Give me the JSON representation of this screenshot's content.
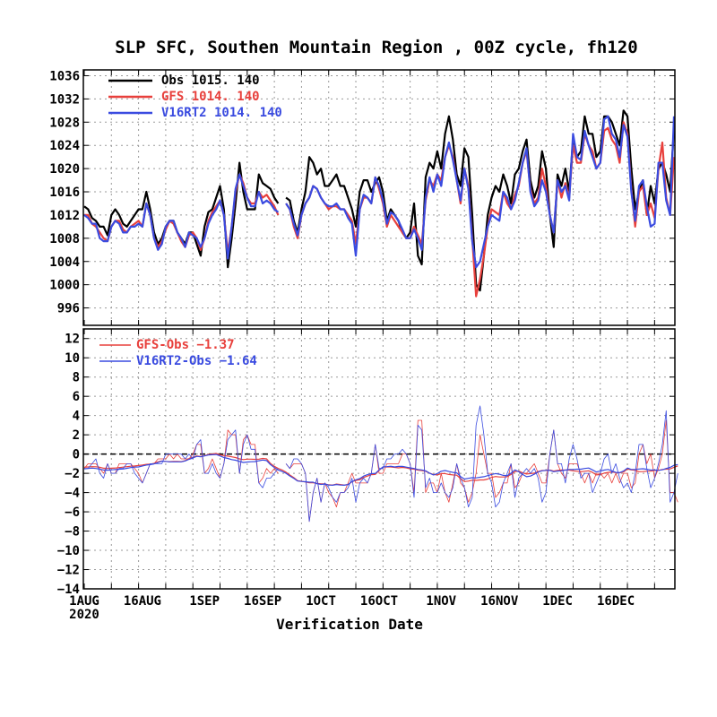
{
  "chart_data": [
    {
      "type": "line",
      "title": "SLP SFC, Southen Mountain Region , 00Z cycle, fh120",
      "xlabel": "Verification Date",
      "ylim": [
        993,
        1037
      ],
      "yticks": [
        "1036",
        "1032",
        "1028",
        "1024",
        "1020",
        "1016",
        "1012",
        "1008",
        "1004",
        "1000",
        "996"
      ],
      "xticks": [
        "1AUG",
        "16AUG",
        "1SEP",
        "16SEP",
        "1OCT",
        "16OCT",
        "1NOV",
        "16NOV",
        "1DEC",
        "16DEC"
      ],
      "xticks_sub": [
        "2020"
      ],
      "x_start": "2020-08-01",
      "x_end": "2020-12-22",
      "grid": true,
      "legend_position": "top-left",
      "series": [
        {
          "name": "Obs",
          "legend_text": "Obs   1015.  140",
          "color": "#000000",
          "values": [
            1013.5,
            1013,
            1011.5,
            1011,
            1010,
            1010,
            1008.5,
            1012,
            1013,
            1012,
            1010.5,
            1010,
            1011,
            1012,
            1013,
            1013,
            1016,
            1013,
            1009,
            1007,
            1008,
            1010,
            1011,
            1011,
            1009,
            1008,
            1007,
            1009,
            1009,
            1007,
            1005,
            1010,
            1012.5,
            1013,
            1015,
            1017,
            1013,
            1003,
            1008,
            1014,
            1021,
            1016,
            1013,
            1013,
            1013,
            1019,
            1017.5,
            1017,
            1016.5,
            1015,
            1014,
            null,
            1015,
            1014.5,
            1011,
            1009,
            1013,
            1016,
            1022,
            1021,
            1019,
            1020,
            1017,
            1017,
            1018,
            1019,
            1017,
            1017,
            1015,
            1013,
            1010,
            1016,
            1018,
            1018,
            1016,
            1017.5,
            1018.5,
            1016,
            1011,
            1013,
            1012,
            1011,
            1009,
            1008,
            1009,
            1014,
            1005,
            1003.5,
            1018.5,
            1021,
            1020,
            1023,
            1020,
            1026,
            1029,
            1025,
            1019,
            1017,
            1023.5,
            1022,
            1012,
            1000,
            999,
            1005,
            1012,
            1015,
            1017,
            1016,
            1019,
            1017,
            1014,
            1019,
            1020,
            1023,
            1025,
            1018,
            1015,
            1017,
            1023,
            1020,
            1012,
            1006.5,
            1019,
            1017,
            1020,
            1016,
            1025,
            1022,
            1023,
            1029,
            1026,
            1026,
            1022,
            1023,
            1029,
            1029,
            1028,
            1026,
            1024,
            1030,
            1029,
            1020,
            1013,
            1016,
            1018,
            1012,
            1017,
            1014,
            1020,
            1021,
            1019,
            1016,
            1027
          ]
        },
        {
          "name": "GFS",
          "legend_text": "GFS  1014.  140",
          "color": "#e8403c",
          "values": [
            1012,
            1012,
            1010.5,
            1010,
            1009,
            1008,
            1007.5,
            1010,
            1011,
            1011,
            1009.5,
            1009,
            1010,
            1010.5,
            1011,
            1010,
            1014,
            1012,
            1008,
            1006.5,
            1007.5,
            1009.5,
            1011,
            1010.5,
            1009,
            1007.5,
            1006.5,
            1008.5,
            1009,
            1008,
            1006,
            1008,
            1011,
            1012.5,
            1013.5,
            1014.5,
            1012,
            1005.5,
            1010,
            1016,
            1019,
            1017.5,
            1015,
            1014,
            1014,
            1016,
            1015,
            1015.5,
            1014.5,
            1013.5,
            1012,
            null,
            1014,
            1013,
            1010,
            1008,
            1012,
            1014,
            1015,
            1017,
            1016.5,
            1015,
            1014,
            1013,
            1013.5,
            1013.5,
            1013,
            1013,
            1012,
            1011,
            1007,
            1013,
            1015,
            1015,
            1014,
            1018.5,
            1016.5,
            1014,
            1010,
            1012,
            1011,
            1010,
            1009,
            1008,
            1008,
            1010,
            1008.5,
            1007,
            1014.5,
            1018,
            1017,
            1019,
            1018,
            1022,
            1024,
            1022,
            1018,
            1014,
            1020,
            1017,
            1008,
            998,
            1001,
            1005,
            1010,
            1013,
            1012.5,
            1012,
            1016,
            1014,
            1013,
            1015.5,
            1017,
            1021,
            1023,
            1016.5,
            1014,
            1015,
            1020,
            1017,
            1012,
            1009,
            1018,
            1015,
            1017.5,
            1015,
            1024,
            1021,
            1021,
            1026,
            1024,
            1023,
            1020,
            1021,
            1026.5,
            1027,
            1025,
            1024,
            1021,
            1028,
            1026,
            1016.5,
            1010,
            1016,
            1017,
            1012,
            1014,
            1011.5,
            1020,
            1024.5,
            1015,
            1012,
            1022
          ]
        },
        {
          "name": "V16RT2",
          "legend_text": "V16RT2  1014.  140",
          "color": "#3a4be0",
          "values": [
            1012,
            1011.5,
            1010.5,
            1010.5,
            1008,
            1007.5,
            1007.5,
            1010,
            1011,
            1010.5,
            1009,
            1009,
            1010,
            1010,
            1010.5,
            1010,
            1014,
            1012,
            1008,
            1006,
            1007,
            1010,
            1011,
            1011,
            1009,
            1008,
            1006.5,
            1009,
            1008.5,
            1008,
            1006.5,
            1008,
            1010.5,
            1012,
            1013,
            1014.5,
            1012,
            1004.5,
            1010,
            1016.5,
            1019,
            1017,
            1015,
            1013.5,
            1013.5,
            1016,
            1014,
            1014.5,
            1014,
            1013,
            1012.5,
            null,
            1014,
            1013,
            1010.5,
            1008.5,
            1012,
            1014,
            1015,
            1017,
            1016.5,
            1015,
            1014,
            1013.5,
            1013.5,
            1014,
            1013,
            1013,
            1011.5,
            1010.5,
            1005,
            1013,
            1015.5,
            1015,
            1014,
            1018.5,
            1017,
            1014.5,
            1010.5,
            1012.5,
            1012,
            1011,
            1009.5,
            1008,
            1008,
            1009.5,
            1008,
            1006,
            1015,
            1018.5,
            1016,
            1019,
            1017,
            1022,
            1024.5,
            1021.5,
            1018,
            1014.5,
            1020,
            1016.5,
            1007.5,
            1003,
            1004,
            1007,
            1010,
            1012,
            1011.5,
            1011,
            1016,
            1015,
            1013,
            1014.5,
            1017.5,
            1021,
            1023.5,
            1016,
            1013.5,
            1014.5,
            1018,
            1016,
            1012,
            1009,
            1018,
            1016,
            1017,
            1014.5,
            1026,
            1022,
            1021.5,
            1026.5,
            1024,
            1022,
            1020,
            1021,
            1028.5,
            1029,
            1026,
            1025,
            1022,
            1027.5,
            1025.5,
            1016,
            1011,
            1017,
            1018,
            1013.5,
            1010,
            1010.5,
            1021,
            1021,
            1014.5,
            1012,
            1029
          ]
        }
      ]
    },
    {
      "type": "line",
      "ylim": [
        -14,
        13
      ],
      "yticks": [
        "12",
        "10",
        "8",
        "6",
        "4",
        "2",
        "0",
        "−2",
        "−4",
        "−6",
        "−8",
        "−10",
        "−12",
        "−14"
      ],
      "zero_line": true,
      "grid": true,
      "legend_position": "top-left",
      "series": [
        {
          "name": "GFS-Obs",
          "legend_text": "GFS-Obs −1.37",
          "color": "#e8403c",
          "values": [
            -1.5,
            -1,
            -1,
            -1,
            -1.5,
            -2,
            -1,
            -2,
            -2,
            -1,
            -1,
            -1,
            -1,
            -1.5,
            -2,
            -3,
            -2,
            -1,
            -1,
            -0.5,
            -0.5,
            -0.5,
            0,
            -0.5,
            0,
            -0.5,
            -0.5,
            -0.5,
            0,
            1,
            1,
            -2,
            -1.5,
            -0.5,
            -1.5,
            -2.5,
            -1,
            2.5,
            2,
            2,
            -2,
            1.5,
            2,
            1,
            1,
            -3,
            -2.5,
            -1.5,
            -2,
            -1.5,
            -2,
            null,
            -1,
            -1.5,
            -1,
            -1,
            -1,
            -2,
            -7,
            -4,
            -2.5,
            -5,
            -3,
            -4,
            -4.5,
            -5.5,
            -4,
            -4,
            -3,
            -2,
            -3,
            -3,
            -3,
            -3,
            -2,
            1,
            -2,
            -2,
            -1,
            -1,
            -1,
            -1,
            0,
            0,
            -1,
            -4,
            3.5,
            3.5,
            -4,
            -3,
            -3,
            -4,
            -2,
            -4,
            -5,
            -3,
            -1,
            -3,
            -3.5,
            -5,
            -4,
            -2,
            2,
            0,
            -2,
            -2,
            -4.5,
            -4,
            -3,
            -3,
            -1,
            -3.5,
            -3,
            -2,
            -2,
            -1.5,
            -1,
            -2,
            -3,
            -3,
            0,
            2.5,
            -1,
            -2,
            -2.5,
            -1,
            -1,
            -1,
            -2,
            -3,
            -2,
            -3,
            -2,
            -2,
            -2.5,
            -2,
            -3,
            -2,
            -3,
            -2,
            -2,
            -3.5,
            -3,
            0,
            1,
            -1,
            0,
            -2.5,
            -1.5,
            0,
            3.5,
            -4,
            -4,
            -5
          ]
        },
        {
          "name": "V16RT2-Obs",
          "legend_text": "V16RT2-Obs −1.64",
          "color": "#3a4be0",
          "values": [
            -1.5,
            -1.5,
            -1,
            -0.5,
            -2,
            -2.5,
            -1,
            -2,
            -2,
            -1.5,
            -1.5,
            -1,
            -1,
            -2,
            -2.5,
            -3,
            -2,
            -1,
            -1,
            -1,
            -1,
            0,
            0,
            0,
            0,
            0,
            -0.5,
            0,
            -0.5,
            1,
            1.5,
            -2,
            -2,
            -1,
            -2,
            -2.5,
            -1,
            1.5,
            2,
            2.5,
            -2,
            1,
            2,
            0.5,
            0.5,
            -3,
            -3.5,
            -2.5,
            -2.5,
            -2,
            -1.5,
            null,
            -1,
            -1.5,
            -0.5,
            -0.5,
            -1,
            -2,
            -7,
            -4,
            -2.5,
            -5,
            -3,
            -3.5,
            -4.5,
            -5,
            -4,
            -4,
            -3.5,
            -2.5,
            -5,
            -3,
            -2.5,
            -3,
            -2,
            1,
            -1.5,
            -1.5,
            -0.5,
            -0.5,
            0,
            0,
            0.5,
            0,
            -1,
            -4.5,
            3,
            2.5,
            -3.5,
            -2.5,
            -4,
            -4,
            -3,
            -4,
            -4.5,
            -3.5,
            -1,
            -2.5,
            -3.5,
            -5.5,
            -4.5,
            3,
            5,
            2,
            -2,
            -3,
            -5.5,
            -5,
            -3,
            -2,
            -1,
            -4.5,
            -2.5,
            -2,
            -1.5,
            -2,
            -1.5,
            -2.5,
            -5,
            -4,
            0,
            2.5,
            -1,
            -1,
            -3,
            -0.5,
            1,
            -0.5,
            -2.5,
            -2,
            -2,
            -4,
            -3,
            -2,
            -0.5,
            0,
            -2,
            -1,
            -2.5,
            -3.5,
            -3,
            -4,
            -2,
            1,
            1,
            -1.5,
            -3.5,
            -2.5,
            -1,
            1,
            4.5,
            -5,
            -4,
            -2
          ]
        }
      ]
    }
  ]
}
